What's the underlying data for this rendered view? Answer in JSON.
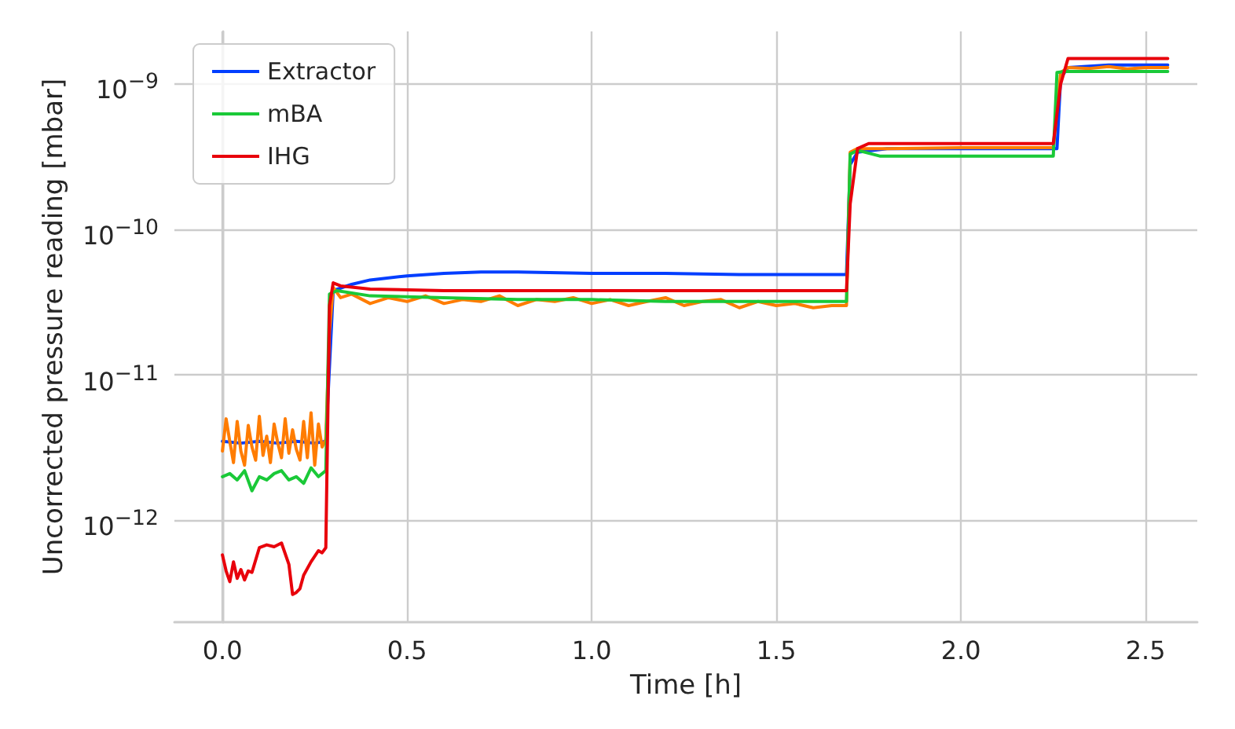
{
  "chart_data": {
    "type": "line",
    "xlabel": "Time [h]",
    "ylabel": "Uncorrected pressure reading [mbar]",
    "log": "y",
    "grid": true,
    "legend": "top left",
    "line_style": "solid",
    "marker": "none",
    "xlim": [
      -0.13,
      2.64
    ],
    "xticks": [
      {
        "value": 0,
        "label": "0.0"
      },
      {
        "value": 0.5,
        "label": "0.5"
      },
      {
        "value": 1,
        "label": "1.0"
      },
      {
        "value": 1.5,
        "label": "1.5"
      },
      {
        "value": 2,
        "label": "2.0"
      },
      {
        "value": 2.5,
        "label": "2.5"
      }
    ],
    "ylim": [
      2e-13,
      2.3e-09
    ],
    "yticks": [
      {
        "value": 1e-12,
        "label": "10$^{−12}$"
      },
      {
        "value": 1e-11,
        "label": "10$^{−11}$"
      },
      {
        "value": 1e-10,
        "label": "10$^{−10}$"
      },
      {
        "value": 1e-09,
        "label": "10$^{−9}$"
      }
    ],
    "series": [
      {
        "name": "Extractor",
        "color": "#023eff",
        "x": [
          0,
          0.05,
          0.1,
          0.15,
          0.2,
          0.25,
          0.28,
          0.3,
          0.35,
          0.4,
          0.5,
          0.6,
          0.7,
          0.8,
          1.0,
          1.2,
          1.4,
          1.6,
          1.69,
          1.7,
          1.72,
          1.8,
          2.0,
          2.2,
          2.26,
          2.27,
          2.29,
          2.4,
          2.56
        ],
        "values": [
          3.5e-12,
          3.4e-12,
          3.5e-12,
          3.4e-12,
          3.5e-12,
          3.4e-12,
          3.5e-12,
          3.8e-11,
          4.2e-11,
          4.5e-11,
          4.8e-11,
          5e-11,
          5.1e-11,
          5.1e-11,
          5e-11,
          5e-11,
          4.9e-11,
          4.9e-11,
          4.9e-11,
          2.8e-10,
          3.4e-10,
          3.6e-10,
          3.6e-10,
          3.6e-10,
          3.6e-10,
          1.1e-09,
          1.3e-09,
          1.35e-09,
          1.35e-09
        ]
      },
      {
        "color": "#ff7c00",
        "x": [
          0,
          0.01,
          0.02,
          0.03,
          0.04,
          0.05,
          0.06,
          0.07,
          0.08,
          0.09,
          0.1,
          0.11,
          0.12,
          0.13,
          0.14,
          0.15,
          0.16,
          0.17,
          0.18,
          0.19,
          0.2,
          0.21,
          0.22,
          0.23,
          0.24,
          0.25,
          0.26,
          0.27,
          0.28,
          0.29,
          0.3,
          0.32,
          0.35,
          0.4,
          0.45,
          0.5,
          0.55,
          0.6,
          0.65,
          0.7,
          0.75,
          0.8,
          0.85,
          0.9,
          0.95,
          1.0,
          1.05,
          1.1,
          1.15,
          1.2,
          1.25,
          1.3,
          1.35,
          1.4,
          1.45,
          1.5,
          1.55,
          1.6,
          1.65,
          1.69,
          1.7,
          1.72,
          1.8,
          2.0,
          2.25,
          2.27,
          2.29,
          2.35,
          2.4,
          2.45,
          2.5,
          2.56
        ],
        "values": [
          3e-12,
          5e-12,
          3.5e-12,
          2.5e-12,
          4.8e-12,
          3e-12,
          2.4e-12,
          4.5e-12,
          3.2e-12,
          2.6e-12,
          5.2e-12,
          2.8e-12,
          3.8e-12,
          2.5e-12,
          4.6e-12,
          3.4e-12,
          2.7e-12,
          5e-12,
          2.9e-12,
          4.2e-12,
          3.1e-12,
          2.6e-12,
          4.8e-12,
          2.7e-12,
          5.5e-12,
          2.4e-12,
          4.6e-12,
          3.2e-12,
          3.6e-12,
          2e-11,
          4e-11,
          3.4e-11,
          3.6e-11,
          3.1e-11,
          3.4e-11,
          3.2e-11,
          3.5e-11,
          3.1e-11,
          3.3e-11,
          3.2e-11,
          3.5e-11,
          3e-11,
          3.3e-11,
          3.2e-11,
          3.4e-11,
          3.1e-11,
          3.3e-11,
          3e-11,
          3.2e-11,
          3.4e-11,
          3e-11,
          3.2e-11,
          3.3e-11,
          2.9e-11,
          3.2e-11,
          3e-11,
          3.1e-11,
          2.9e-11,
          3e-11,
          3e-11,
          3.4e-10,
          3.6e-10,
          3.6e-10,
          3.65e-10,
          3.65e-10,
          1.2e-09,
          1.3e-09,
          1.28e-09,
          1.32e-09,
          1.27e-09,
          1.3e-09,
          1.3e-09
        ]
      },
      {
        "name": "mBA",
        "color": "#1ac938",
        "x": [
          0,
          0.02,
          0.04,
          0.06,
          0.08,
          0.1,
          0.12,
          0.14,
          0.16,
          0.18,
          0.2,
          0.22,
          0.24,
          0.26,
          0.28,
          0.29,
          0.31,
          0.4,
          0.6,
          0.8,
          1.0,
          1.2,
          1.4,
          1.6,
          1.69,
          1.7,
          1.72,
          1.78,
          2.0,
          2.25,
          2.26,
          2.28,
          2.56
        ],
        "values": [
          2e-12,
          2.1e-12,
          1.9e-12,
          2.2e-12,
          1.6e-12,
          2e-12,
          1.9e-12,
          2.1e-12,
          2.2e-12,
          1.9e-12,
          2e-12,
          1.8e-12,
          2.3e-12,
          2e-12,
          2.2e-12,
          3.6e-11,
          3.8e-11,
          3.5e-11,
          3.4e-11,
          3.3e-11,
          3.3e-11,
          3.2e-11,
          3.2e-11,
          3.2e-11,
          3.2e-11,
          3.3e-10,
          3.5e-10,
          3.2e-10,
          3.2e-10,
          3.2e-10,
          1.2e-09,
          1.22e-09,
          1.22e-09
        ]
      },
      {
        "name": "IHG",
        "color": "#e8000b",
        "x": [
          0,
          0.01,
          0.02,
          0.03,
          0.04,
          0.05,
          0.06,
          0.07,
          0.08,
          0.1,
          0.12,
          0.14,
          0.16,
          0.18,
          0.19,
          0.2,
          0.21,
          0.22,
          0.24,
          0.26,
          0.27,
          0.28,
          0.29,
          0.3,
          0.32,
          0.4,
          0.6,
          0.8,
          1.0,
          1.2,
          1.4,
          1.6,
          1.69,
          1.7,
          1.72,
          1.75,
          2.0,
          2.25,
          2.27,
          2.29,
          2.4,
          2.56
        ],
        "values": [
          5.8e-13,
          4.5e-13,
          3.8e-13,
          5.2e-13,
          4e-13,
          4.6e-13,
          3.9e-13,
          4.5e-13,
          4.4e-13,
          6.5e-13,
          6.8e-13,
          6.6e-13,
          7e-13,
          5e-13,
          3.1e-13,
          3.2e-13,
          3.4e-13,
          4.2e-13,
          5.2e-13,
          6.2e-13,
          6e-13,
          6.5e-13,
          3e-11,
          4.3e-11,
          4.1e-11,
          3.9e-11,
          3.8e-11,
          3.8e-11,
          3.8e-11,
          3.8e-11,
          3.8e-11,
          3.8e-11,
          3.8e-11,
          1.5e-10,
          3.6e-10,
          3.9e-10,
          3.9e-10,
          3.9e-10,
          1e-09,
          1.5e-09,
          1.5e-09,
          1.5e-09
        ]
      }
    ]
  }
}
